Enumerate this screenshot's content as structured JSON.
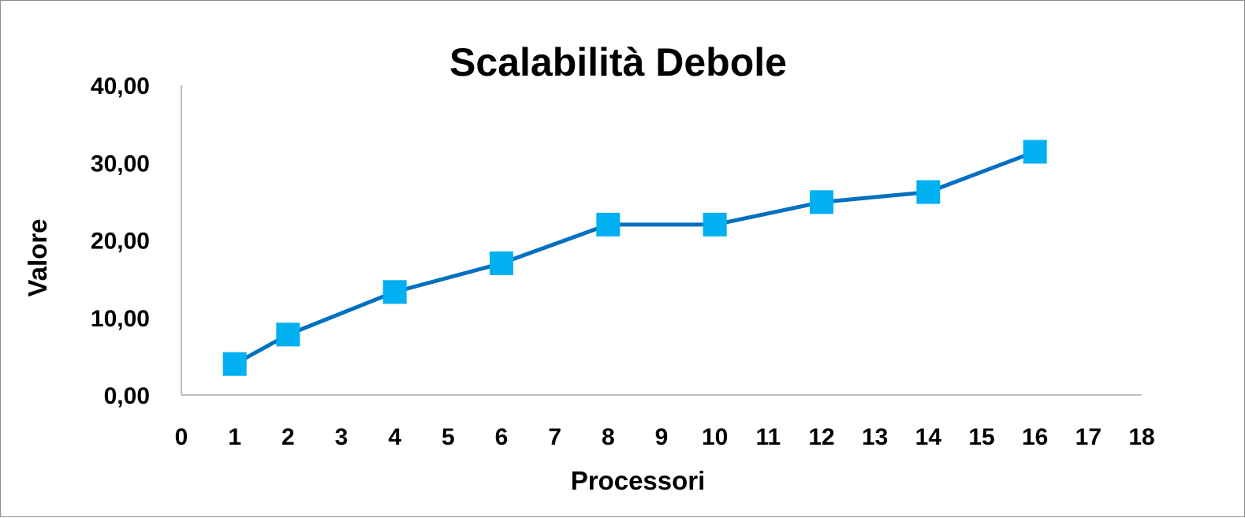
{
  "chart_data": {
    "type": "line",
    "title": "Scalabilità Debole",
    "xlabel": "Processori",
    "ylabel": "Valore",
    "xlim": [
      0,
      18
    ],
    "ylim": [
      0,
      40
    ],
    "x_ticks": [
      "0",
      "1",
      "2",
      "3",
      "4",
      "5",
      "6",
      "7",
      "8",
      "9",
      "10",
      "11",
      "12",
      "13",
      "14",
      "15",
      "16",
      "17",
      "18"
    ],
    "y_ticks": [
      "0,00",
      "10,00",
      "20,00",
      "30,00",
      "40,00"
    ],
    "grid": false,
    "legend": "none",
    "series": [
      {
        "x": [
          1,
          2,
          4,
          6,
          8,
          10,
          12,
          14,
          16
        ],
        "values": [
          4.0,
          7.8,
          13.3,
          17.0,
          22.0,
          22.0,
          24.9,
          26.2,
          31.4
        ]
      }
    ],
    "colors": {
      "line": "#0070c0",
      "marker": "#00b0f0",
      "axis": "#bfbfbf"
    }
  }
}
